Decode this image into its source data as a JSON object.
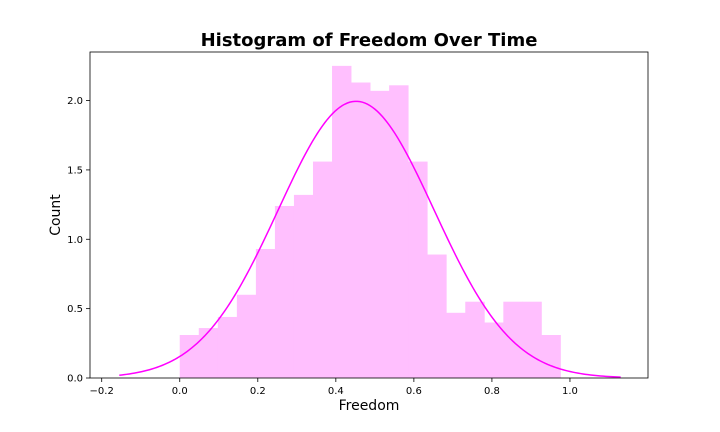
{
  "chart_data": {
    "type": "bar",
    "title": "Histogram of Freedom Over Time",
    "xlabel": "Freedom",
    "ylabel": "Count",
    "xlim": [
      -0.23,
      1.2
    ],
    "ylim": [
      0,
      2.35
    ],
    "xticks": [
      -0.2,
      0.0,
      0.2,
      0.4,
      0.6,
      0.8,
      1.0
    ],
    "xtick_labels": [
      "−0.2",
      "0.0",
      "0.2",
      "0.4",
      "0.6",
      "0.8",
      "1.0"
    ],
    "yticks": [
      0.0,
      0.5,
      1.0,
      1.5,
      2.0
    ],
    "ytick_labels": [
      "0.0",
      "0.5",
      "1.0",
      "1.5",
      "2.0"
    ],
    "bin_start": 0.0,
    "bin_width": 0.04878,
    "values": [
      0.31,
      0.36,
      0.44,
      0.6,
      0.93,
      1.24,
      1.32,
      1.56,
      2.25,
      2.13,
      2.07,
      2.11,
      1.56,
      0.89,
      0.47,
      0.55,
      0.4,
      0.55,
      0.55,
      0.31
    ],
    "bar_color": "#ffbffe",
    "density_curve": {
      "mean": 0.452,
      "std": 0.2,
      "x_range": [
        -0.155,
        1.13
      ],
      "color": "#ff00ff"
    },
    "grid": false
  }
}
